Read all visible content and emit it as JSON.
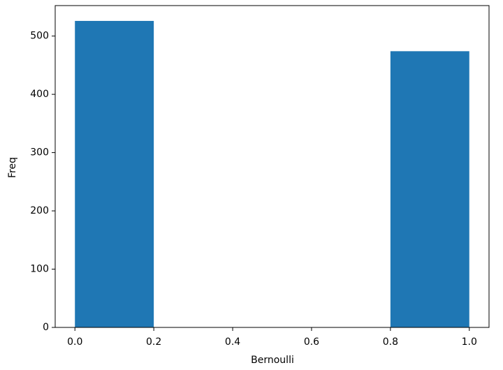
{
  "chart_data": {
    "type": "histogram",
    "x_label": "Bernoulli",
    "y_label": "Freq",
    "bins": [
      0.0,
      0.2,
      0.4,
      0.6,
      0.8,
      1.0
    ],
    "values": [
      526,
      0,
      0,
      0,
      474
    ],
    "color": "#1f77b4",
    "xlim": [
      -0.05,
      1.05
    ],
    "ylim": [
      0,
      552.3
    ],
    "xticks": [
      {
        "value": 0,
        "label": "0.0"
      },
      {
        "value": 0.2,
        "label": "0.2"
      },
      {
        "value": 0.4,
        "label": "0.4"
      },
      {
        "value": 0.6,
        "label": "0.6"
      },
      {
        "value": 0.8,
        "label": "0.8"
      },
      {
        "value": 1,
        "label": "1.0"
      }
    ],
    "yticks": [
      0,
      100,
      200,
      300,
      400,
      500
    ]
  }
}
